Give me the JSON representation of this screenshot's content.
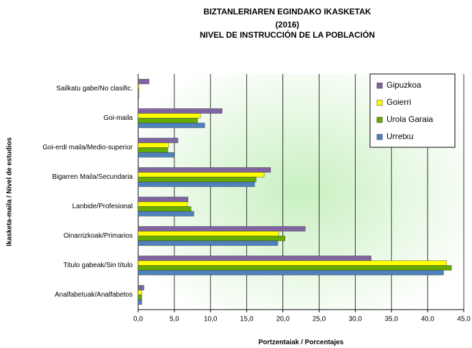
{
  "chart_data": {
    "type": "hbar",
    "title": [
      "BIZTANLERIAREN EGINDAKO IKASKETAK",
      "(2016)",
      "NIVEL DE INSTRUCCIÓN DE LA POBLACIÓN"
    ],
    "x_label": "Portzentaiak / Porcentajes",
    "y_label": "Ikasketa-maila / Nivel de estudios",
    "categories": [
      "Sailkatu gabe/No clasific.",
      "Goi-maila",
      "Goi-erdi maila/Medio-superior",
      "Bigarren Maila/Secundaria",
      "Lanbide/Profesional",
      "Oinarrizkoak/Primarios",
      "Titulo gabeak/Sin título",
      "Analfabetuak/Analfabetos"
    ],
    "series": [
      {
        "name": "Gipuzkoa",
        "color": "#8064a2",
        "values": [
          1.5,
          11.6,
          5.5,
          18.3,
          6.9,
          23.1,
          32.2,
          0.8
        ]
      },
      {
        "name": "Goierri",
        "color": "#ffff00",
        "values": [
          0.1,
          8.6,
          4.2,
          17.4,
          6.8,
          19.4,
          42.6,
          0.5
        ]
      },
      {
        "name": "Urola Garaia",
        "color": "#66aa00",
        "values": [
          0.1,
          8.2,
          4.1,
          16.3,
          7.3,
          20.3,
          43.3,
          0.5
        ]
      },
      {
        "name": "Urretxu",
        "color": "#4f81bd",
        "values": [
          0.1,
          9.2,
          5.0,
          16.1,
          7.7,
          19.3,
          42.2,
          0.5
        ]
      }
    ],
    "xlim": [
      0,
      45
    ],
    "xticks": [
      {
        "value": 0,
        "label": "0,0"
      },
      {
        "value": 5,
        "label": "5,0"
      },
      {
        "value": 10,
        "label": "10,0"
      },
      {
        "value": 15,
        "label": "15,0"
      },
      {
        "value": 20,
        "label": "20,0"
      },
      {
        "value": 25,
        "label": "25,0"
      },
      {
        "value": 30,
        "label": "30,0"
      },
      {
        "value": 35,
        "label": "35,0"
      },
      {
        "value": 40,
        "label": "40,0"
      },
      {
        "value": 45,
        "label": "45,0"
      }
    ],
    "grid": true,
    "legend": "upper right"
  }
}
